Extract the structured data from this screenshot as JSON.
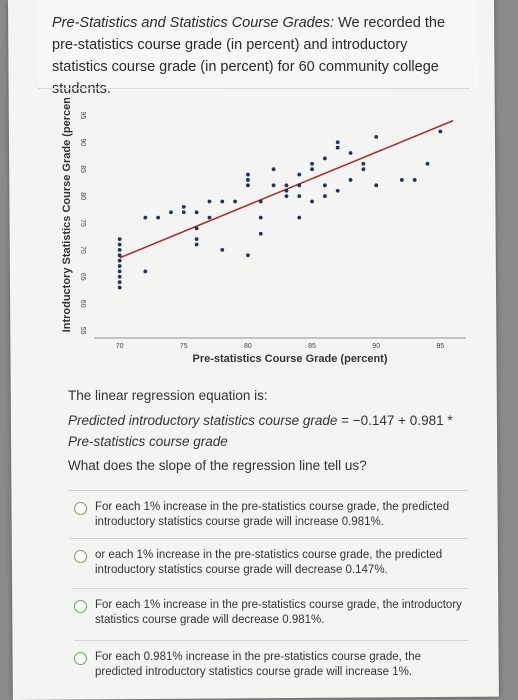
{
  "intro": {
    "title": "Pre-Statistics and Statistics Course Grades:",
    "text": " We recorded the pre-statistics course grade (in percent) and introductory statistics course grade (in percent) for 60 community college students."
  },
  "chart_data": {
    "type": "scatter",
    "xlabel": "Pre-statistics Course Grade (percent)",
    "ylabel": "Introductory Statistics Course Grade (percent)",
    "xlim": [
      68,
      97
    ],
    "ylim": [
      54,
      96
    ],
    "xticks": [
      "70",
      "75",
      "80",
      "85",
      "90",
      "95"
    ],
    "yticks": [
      "55",
      "60",
      "65",
      "70",
      "75",
      "80",
      "85",
      "90",
      "95"
    ],
    "grid": false,
    "points": [
      [
        70,
        63
      ],
      [
        70,
        64
      ],
      [
        70,
        65
      ],
      [
        70,
        66
      ],
      [
        70,
        67
      ],
      [
        70,
        68
      ],
      [
        70,
        69
      ],
      [
        70,
        70
      ],
      [
        70,
        71
      ],
      [
        70,
        72
      ],
      [
        72,
        66
      ],
      [
        72,
        76
      ],
      [
        73,
        76
      ],
      [
        74,
        77
      ],
      [
        75,
        77
      ],
      [
        75,
        78
      ],
      [
        76,
        71
      ],
      [
        76,
        72
      ],
      [
        76,
        74
      ],
      [
        76,
        77
      ],
      [
        77,
        76
      ],
      [
        77,
        79
      ],
      [
        78,
        70
      ],
      [
        78,
        79
      ],
      [
        79,
        79
      ],
      [
        80,
        69
      ],
      [
        80,
        82
      ],
      [
        80,
        83
      ],
      [
        80,
        84
      ],
      [
        81,
        73
      ],
      [
        81,
        76
      ],
      [
        81,
        79
      ],
      [
        82,
        82
      ],
      [
        82,
        85
      ],
      [
        83,
        80
      ],
      [
        83,
        81
      ],
      [
        83,
        82
      ],
      [
        84,
        76
      ],
      [
        84,
        80
      ],
      [
        84,
        82
      ],
      [
        84,
        84
      ],
      [
        85,
        79
      ],
      [
        85,
        85
      ],
      [
        85,
        86
      ],
      [
        86,
        80
      ],
      [
        86,
        82
      ],
      [
        86,
        87
      ],
      [
        87,
        81
      ],
      [
        87,
        89
      ],
      [
        87,
        90
      ],
      [
        88,
        83
      ],
      [
        88,
        88
      ],
      [
        89,
        85
      ],
      [
        89,
        86
      ],
      [
        90,
        82
      ],
      [
        90,
        91
      ],
      [
        92,
        83
      ],
      [
        93,
        83
      ],
      [
        94,
        86
      ],
      [
        95,
        92
      ]
    ],
    "regression": {
      "intercept": -0.147,
      "slope": 0.981
    }
  },
  "question": {
    "intro": "The linear regression equation is:",
    "equation_lhs": "Predicted introductory statistics course grade",
    "equation_mid": " = −0.147 + 0.981 * ",
    "equation_rhs": "Pre-statistics course grade",
    "prompt": "What does the slope of the regression line tell us?"
  },
  "options": [
    {
      "text": "For each 1% increase in the pre-statistics course grade, the predicted introductory statistics course grade will increase 0.981%."
    },
    {
      "text": "or each 1% increase in the pre-statistics course grade, the predicted introductory statistics course grade will decrease 0.147%."
    },
    {
      "text": "For each 1% increase in the pre-statistics course grade, the introductory statistics course grade will decrease 0.981%."
    },
    {
      "text": "For each 0.981% increase in the pre-statistics course grade, the predicted introductory statistics course grade will increase 1%."
    }
  ],
  "colors": {
    "points": "#1f3559",
    "regression_line": "#a83232",
    "radio_border": "#7a9c6a"
  }
}
